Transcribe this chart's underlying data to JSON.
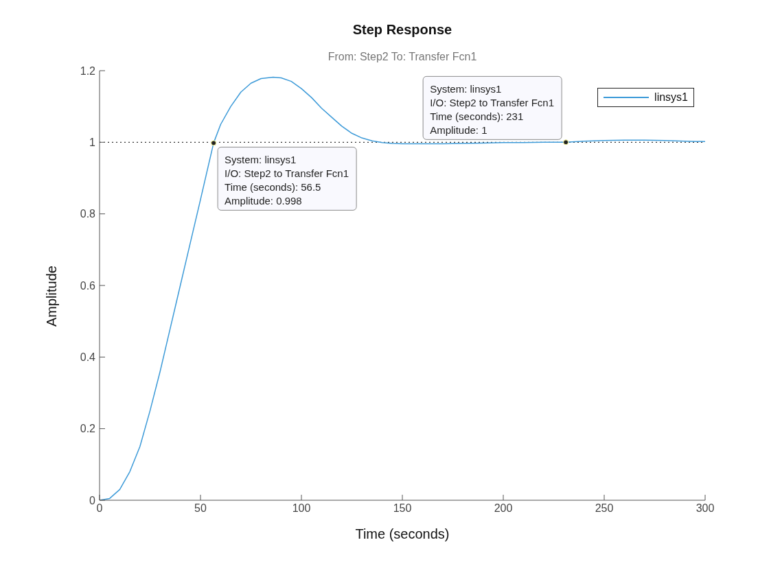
{
  "chart_data": {
    "type": "line",
    "title": "Step Response",
    "subtitle": "From: Step2  To: Transfer Fcn1",
    "xlabel": "Time (seconds)",
    "ylabel": "Amplitude",
    "x": [
      0,
      5,
      10,
      15,
      20,
      25,
      30,
      35,
      40,
      45,
      50,
      56.5,
      60,
      65,
      70,
      75,
      80,
      86,
      90,
      95,
      100,
      105,
      110,
      115,
      120,
      125,
      130,
      135,
      140,
      145,
      150,
      160,
      170,
      180,
      190,
      200,
      210,
      220,
      231,
      240,
      250,
      260,
      270,
      280,
      290,
      300
    ],
    "series": [
      {
        "name": "linsys1",
        "color": "#3c9ad8",
        "values": [
          0,
          0.005,
          0.03,
          0.08,
          0.15,
          0.25,
          0.36,
          0.48,
          0.6,
          0.72,
          0.84,
          0.998,
          1.05,
          1.1,
          1.14,
          1.165,
          1.178,
          1.182,
          1.18,
          1.17,
          1.15,
          1.125,
          1.095,
          1.07,
          1.045,
          1.025,
          1.012,
          1.004,
          0.999,
          0.997,
          0.996,
          0.996,
          0.996,
          0.997,
          0.998,
          0.999,
          0.999,
          1.0,
          1.0,
          1.003,
          1.005,
          1.006,
          1.006,
          1.005,
          1.003,
          1.002
        ]
      }
    ],
    "xlim": [
      0,
      300
    ],
    "xticks": [
      0,
      50,
      100,
      150,
      200,
      250,
      300
    ],
    "ylim": [
      0,
      1.2
    ],
    "yticks": [
      0,
      0.2,
      0.4,
      0.6,
      0.8,
      1,
      1.2
    ],
    "ref_lines": [
      {
        "axis": "y",
        "value": 1,
        "color": "#000000",
        "line_style": "dotted"
      }
    ],
    "annotations": [
      {
        "text": "System: linsys1\nI/O: Step2 to Transfer Fcn1\nTime (seconds): 56.5\nAmplitude: 0.998",
        "x": 56.5,
        "y": 0.998
      },
      {
        "text": "System: linsys1\nI/O: Step2 to Transfer Fcn1\nTime (seconds): 231\nAmplitude: 1",
        "x": 231,
        "y": 1
      }
    ],
    "legend": "top right",
    "marker": "none",
    "line_style": "solid",
    "grid": false
  }
}
